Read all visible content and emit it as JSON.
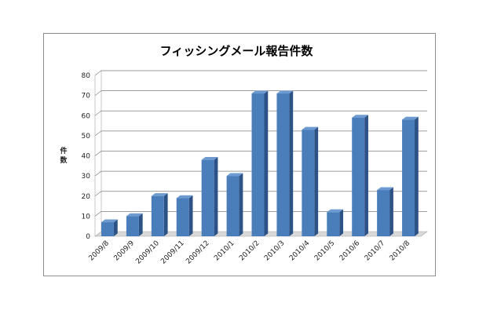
{
  "chart_data": {
    "type": "bar",
    "title": "フィッシングメール報告件数",
    "xlabel": "",
    "ylabel": "件数",
    "categories": [
      "2009/8",
      "2009/9",
      "2009/10",
      "2009/11",
      "2009/12",
      "2010/1",
      "2010/2",
      "2010/3",
      "2010/4",
      "2010/5",
      "2010/6",
      "2010/7",
      "2010/8"
    ],
    "values": [
      7,
      10,
      20,
      19,
      38,
      30,
      71,
      71,
      53,
      12,
      59,
      23,
      58
    ],
    "ylim": [
      0,
      80
    ],
    "yticks": [
      0,
      10,
      20,
      30,
      40,
      50,
      60,
      70,
      80
    ],
    "grid": true,
    "style": "3d-column",
    "colors": {
      "bar_front": "#4a7ebb",
      "bar_side": "#2d5286",
      "bar_top": "#6d9bd1",
      "gridline": "#7f7f7f",
      "wall": "#ffffff",
      "floor": "#d9d9d9"
    }
  }
}
